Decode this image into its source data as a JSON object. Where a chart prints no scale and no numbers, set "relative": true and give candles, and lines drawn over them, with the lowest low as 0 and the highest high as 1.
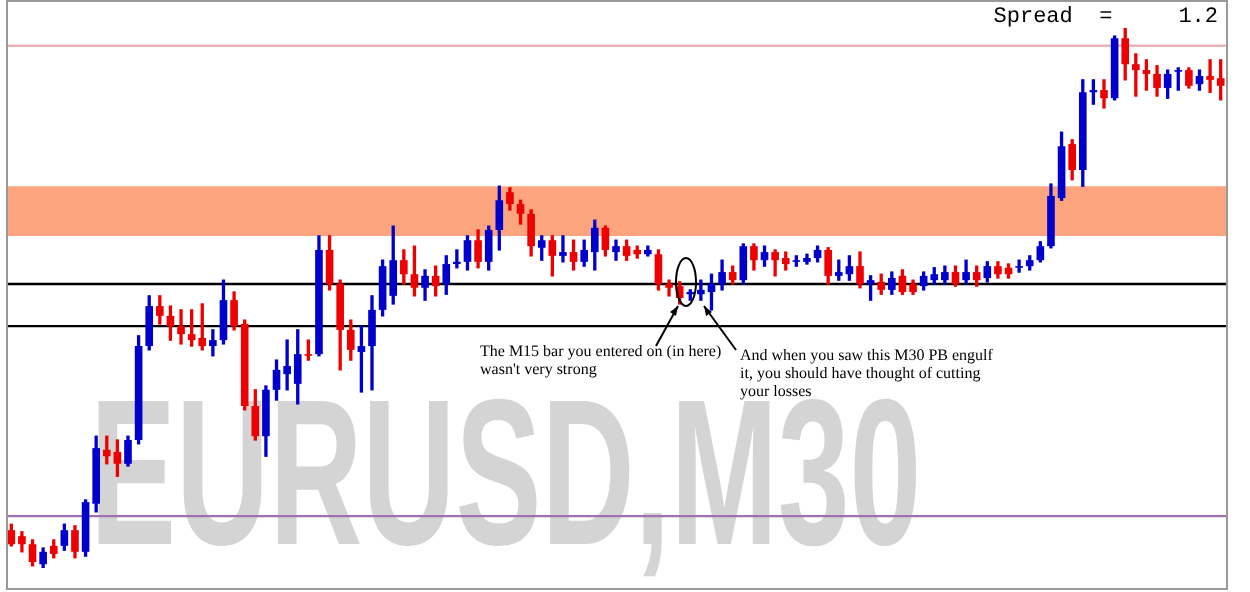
{
  "chart_data": {
    "type": "candlestick",
    "relative": true,
    "tick_labels": false,
    "categories": [
      null,
      null,
      null,
      null,
      null,
      null,
      null,
      null,
      null,
      null,
      null,
      null,
      null,
      null,
      null,
      null,
      null,
      null,
      null,
      null,
      null,
      null,
      null,
      null,
      null,
      null,
      null,
      null,
      null,
      null,
      null,
      null,
      null,
      null,
      null,
      null,
      null,
      null,
      null,
      null,
      null,
      null,
      null,
      null,
      null,
      null,
      null,
      null,
      null,
      null,
      null,
      null,
      null,
      null,
      null,
      null,
      null,
      null,
      null,
      null,
      null,
      null,
      null,
      null,
      null,
      null,
      null,
      null,
      null,
      null,
      null,
      null,
      null,
      null,
      null,
      null,
      null,
      null,
      null,
      null,
      null,
      null,
      null,
      null,
      null,
      null,
      null,
      null,
      null,
      null,
      null,
      null,
      null,
      null,
      null,
      null,
      null,
      null,
      null,
      null,
      null,
      null,
      null,
      null,
      null,
      null,
      null,
      null,
      null,
      null,
      null,
      null,
      null,
      null,
      null
    ],
    "ohlc": [
      [
        0.07,
        0.081,
        0.041,
        0.044
      ],
      [
        0.059,
        0.067,
        0.03,
        0.044
      ],
      [
        0.044,
        0.052,
        0.004,
        0.011
      ],
      [
        0.007,
        0.037,
        0,
        0.03
      ],
      [
        0.041,
        0.052,
        0.019,
        0.026
      ],
      [
        0.041,
        0.081,
        0.033,
        0.07
      ],
      [
        0.07,
        0.078,
        0.019,
        0.03
      ],
      [
        0.03,
        0.126,
        0.022,
        0.122
      ],
      [
        0.119,
        0.244,
        0.104,
        0.222
      ],
      [
        0.219,
        0.244,
        0.193,
        0.207
      ],
      [
        0.215,
        0.237,
        0.17,
        0.193
      ],
      [
        0.193,
        0.244,
        0.189,
        0.237
      ],
      [
        0.237,
        0.43,
        0.23,
        0.411
      ],
      [
        0.411,
        0.504,
        0.404,
        0.485
      ],
      [
        0.485,
        0.504,
        0.452,
        0.467
      ],
      [
        0.467,
        0.485,
        0.422,
        0.448
      ],
      [
        0.448,
        0.478,
        0.415,
        0.433
      ],
      [
        0.433,
        0.478,
        0.411,
        0.422
      ],
      [
        0.426,
        0.489,
        0.404,
        0.411
      ],
      [
        0.411,
        0.441,
        0.393,
        0.422
      ],
      [
        0.422,
        0.533,
        0.415,
        0.496
      ],
      [
        0.496,
        0.511,
        0.441,
        0.448
      ],
      [
        0.452,
        0.459,
        0.293,
        0.3
      ],
      [
        0.3,
        0.33,
        0.237,
        0.244
      ],
      [
        0.244,
        0.337,
        0.207,
        0.33
      ],
      [
        0.33,
        0.385,
        0.311,
        0.367
      ],
      [
        0.359,
        0.422,
        0.33,
        0.374
      ],
      [
        0.341,
        0.441,
        0.304,
        0.396
      ],
      [
        0.396,
        0.422,
        0.385,
        0.393
      ],
      [
        0.396,
        0.615,
        0.393,
        0.589
      ],
      [
        0.589,
        0.615,
        0.515,
        0.526
      ],
      [
        0.526,
        0.533,
        0.367,
        0.441
      ],
      [
        0.441,
        0.459,
        0.385,
        0.404
      ],
      [
        0.4,
        0.448,
        0.326,
        0.411
      ],
      [
        0.411,
        0.504,
        0.33,
        0.478
      ],
      [
        0.478,
        0.57,
        0.467,
        0.559
      ],
      [
        0.504,
        0.633,
        0.489,
        0.57
      ],
      [
        0.57,
        0.589,
        0.526,
        0.544
      ],
      [
        0.544,
        0.596,
        0.504,
        0.519
      ],
      [
        0.519,
        0.552,
        0.496,
        0.541
      ],
      [
        0.541,
        0.559,
        0.504,
        0.522
      ],
      [
        0.526,
        0.578,
        0.507,
        0.563
      ],
      [
        0.563,
        0.589,
        0.556,
        0.567
      ],
      [
        0.567,
        0.615,
        0.552,
        0.607
      ],
      [
        0.607,
        0.626,
        0.556,
        0.567
      ],
      [
        0.567,
        0.633,
        0.552,
        0.626
      ],
      [
        0.626,
        0.707,
        0.589,
        0.681
      ],
      [
        0.696,
        0.704,
        0.663,
        0.674
      ],
      [
        0.674,
        0.681,
        0.637,
        0.656
      ],
      [
        0.656,
        0.663,
        0.578,
        0.596
      ],
      [
        0.593,
        0.615,
        0.57,
        0.607
      ],
      [
        0.607,
        0.615,
        0.541,
        0.578
      ],
      [
        0.578,
        0.615,
        0.567,
        0.585
      ],
      [
        0.585,
        0.607,
        0.552,
        0.567
      ],
      [
        0.567,
        0.607,
        0.559,
        0.589
      ],
      [
        0.585,
        0.644,
        0.552,
        0.63
      ],
      [
        0.63,
        0.633,
        0.578,
        0.589
      ],
      [
        0.585,
        0.607,
        0.57,
        0.596
      ],
      [
        0.596,
        0.607,
        0.57,
        0.578
      ],
      [
        0.589,
        0.596,
        0.574,
        0.581
      ],
      [
        0.581,
        0.596,
        0.578,
        0.589
      ],
      [
        0.581,
        0.589,
        0.515,
        0.526
      ],
      [
        0.526,
        0.533,
        0.504,
        0.519
      ],
      [
        0.522,
        0.53,
        0.489,
        0.5
      ],
      [
        0.507,
        0.515,
        0.496,
        0.511
      ],
      [
        0.507,
        0.533,
        0.496,
        0.515
      ],
      [
        0.511,
        0.544,
        0.478,
        0.526
      ],
      [
        0.526,
        0.57,
        0.515,
        0.548
      ],
      [
        0.548,
        0.559,
        0.526,
        0.533
      ],
      [
        0.533,
        0.6,
        0.526,
        0.596
      ],
      [
        0.596,
        0.6,
        0.552,
        0.57
      ],
      [
        0.57,
        0.596,
        0.559,
        0.585
      ],
      [
        0.585,
        0.589,
        0.541,
        0.57
      ],
      [
        0.574,
        0.585,
        0.552,
        0.563
      ],
      [
        0.567,
        0.578,
        0.559,
        0.57
      ],
      [
        0.567,
        0.581,
        0.563,
        0.574
      ],
      [
        0.574,
        0.596,
        0.567,
        0.589
      ],
      [
        0.589,
        0.593,
        0.526,
        0.541
      ],
      [
        0.541,
        0.57,
        0.533,
        0.548
      ],
      [
        0.544,
        0.578,
        0.533,
        0.559
      ],
      [
        0.559,
        0.585,
        0.519,
        0.526
      ],
      [
        0.526,
        0.541,
        0.496,
        0.533
      ],
      [
        0.53,
        0.544,
        0.507,
        0.515
      ],
      [
        0.515,
        0.548,
        0.507,
        0.537
      ],
      [
        0.541,
        0.552,
        0.507,
        0.511
      ],
      [
        0.526,
        0.533,
        0.507,
        0.511
      ],
      [
        0.522,
        0.548,
        0.515,
        0.541
      ],
      [
        0.533,
        0.556,
        0.526,
        0.544
      ],
      [
        0.533,
        0.559,
        0.526,
        0.548
      ],
      [
        0.548,
        0.559,
        0.522,
        0.526
      ],
      [
        0.533,
        0.57,
        0.526,
        0.548
      ],
      [
        0.548,
        0.559,
        0.522,
        0.533
      ],
      [
        0.537,
        0.567,
        0.53,
        0.559
      ],
      [
        0.559,
        0.567,
        0.537,
        0.544
      ],
      [
        0.556,
        0.563,
        0.537,
        0.544
      ],
      [
        0.556,
        0.57,
        0.548,
        0.559
      ],
      [
        0.559,
        0.578,
        0.552,
        0.57
      ],
      [
        0.57,
        0.604,
        0.567,
        0.596
      ],
      [
        0.596,
        0.711,
        0.593,
        0.689
      ],
      [
        0.685,
        0.807,
        0.681,
        0.781
      ],
      [
        0.785,
        0.793,
        0.719,
        0.737
      ],
      [
        0.737,
        0.904,
        0.707,
        0.881
      ],
      [
        0.881,
        0.904,
        0.859,
        0.885
      ],
      [
        0.885,
        0.904,
        0.852,
        0.87
      ],
      [
        0.87,
        0.985,
        0.867,
        0.981
      ],
      [
        0.981,
        1,
        0.904,
        0.933
      ],
      [
        0.933,
        0.952,
        0.874,
        0.922
      ],
      [
        0.922,
        0.941,
        0.885,
        0.915
      ],
      [
        0.915,
        0.93,
        0.874,
        0.889
      ],
      [
        0.889,
        0.922,
        0.87,
        0.915
      ],
      [
        0.919,
        0.926,
        0.885,
        0.922
      ],
      [
        0.922,
        0.926,
        0.889,
        0.893
      ],
      [
        0.896,
        0.922,
        0.885,
        0.911
      ],
      [
        0.911,
        0.941,
        0.881,
        0.904
      ],
      [
        0.907,
        0.941,
        0.867,
        0.893
      ]
    ],
    "colors": [
      "#ee0000",
      "#ee0000",
      "#ee0000",
      "#0000cc",
      "#ee0000",
      "#0000cc",
      "#ee0000",
      "#0000cc",
      "#0000cc",
      "#ee0000",
      "#ee0000",
      "#0000cc",
      "#0000cc",
      "#0000cc",
      "#ee0000",
      "#ee0000",
      "#ee0000",
      "#ee0000",
      "#ee0000",
      "#0000cc",
      "#0000cc",
      "#ee0000",
      "#ee0000",
      "#ee0000",
      "#0000cc",
      "#0000cc",
      "#0000cc",
      "#0000cc",
      "#ee0000",
      "#0000cc",
      "#ee0000",
      "#ee0000",
      "#ee0000",
      "#0000cc",
      "#0000cc",
      "#0000cc",
      "#0000cc",
      "#ee0000",
      "#ee0000",
      "#0000cc",
      "#ee0000",
      "#0000cc",
      "#0000cc",
      "#0000cc",
      "#ee0000",
      "#0000cc",
      "#0000cc",
      "#ee0000",
      "#ee0000",
      "#ee0000",
      "#0000cc",
      "#ee0000",
      "#0000cc",
      "#ee0000",
      "#0000cc",
      "#0000cc",
      "#ee0000",
      "#0000cc",
      "#ee0000",
      "#ee0000",
      "#0000cc",
      "#ee0000",
      "#ee0000",
      "#ee0000",
      "#0000cc",
      "#0000cc",
      "#0000cc",
      "#0000cc",
      "#ee0000",
      "#0000cc",
      "#ee0000",
      "#0000cc",
      "#ee0000",
      "#ee0000",
      "#0000cc",
      "#0000cc",
      "#0000cc",
      "#ee0000",
      "#0000cc",
      "#0000cc",
      "#ee0000",
      "#0000cc",
      "#ee0000",
      "#0000cc",
      "#ee0000",
      "#ee0000",
      "#0000cc",
      "#0000cc",
      "#0000cc",
      "#ee0000",
      "#0000cc",
      "#ee0000",
      "#0000cc",
      "#ee0000",
      "#ee0000",
      "#0000cc",
      "#0000cc",
      "#0000cc",
      "#0000cc",
      "#0000cc",
      "#ee0000",
      "#0000cc",
      "#0000cc",
      "#ee0000",
      "#0000cc",
      "#ee0000",
      "#ee0000",
      "#ee0000",
      "#ee0000",
      "#0000cc",
      "#0000cc",
      "#ee0000",
      "#0000cc",
      "#ee0000",
      "#ee0000"
    ],
    "ref_lines": [
      {
        "axis": "y",
        "value": 0.967,
        "color": "#e8b4b8"
      },
      {
        "axis": "y",
        "value": 0.526,
        "color": "#000000"
      },
      {
        "axis": "y",
        "value": 0.448,
        "color": "#000000"
      },
      {
        "axis": "y",
        "value": 0.096,
        "color": "#a070b0"
      }
    ],
    "bands": [
      {
        "axis": "y",
        "from": 0.615,
        "to": 0.707,
        "color": "#fca47e"
      }
    ],
    "annotations": [
      "Spread  =     1.2",
      "EURUSD,M30",
      "The M15 bar you entered on (in here)\nwasn't very strong",
      "And when you saw this M30 PB engulf\nit, you should have thought of cutting\nyour losses"
    ]
  }
}
